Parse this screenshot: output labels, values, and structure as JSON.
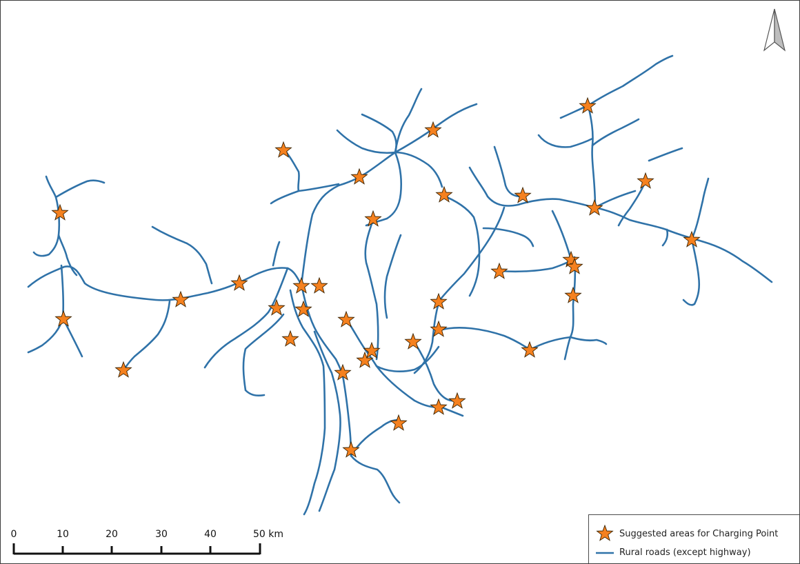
{
  "map": {
    "north_arrow_icon": "north-arrow-icon",
    "colors": {
      "roads": "#2f72a8",
      "charging_star": "#f5811f",
      "frame": "#3c3c3c"
    }
  },
  "scale_bar": {
    "ticks": [
      "0",
      "10",
      "20",
      "30",
      "40",
      "50 km"
    ]
  },
  "legend": {
    "items": [
      {
        "label": "Suggested areas for Charging Point",
        "symbol": "star-icon"
      },
      {
        "label": "Rural roads (except highway)",
        "symbol": "line-icon"
      }
    ]
  }
}
